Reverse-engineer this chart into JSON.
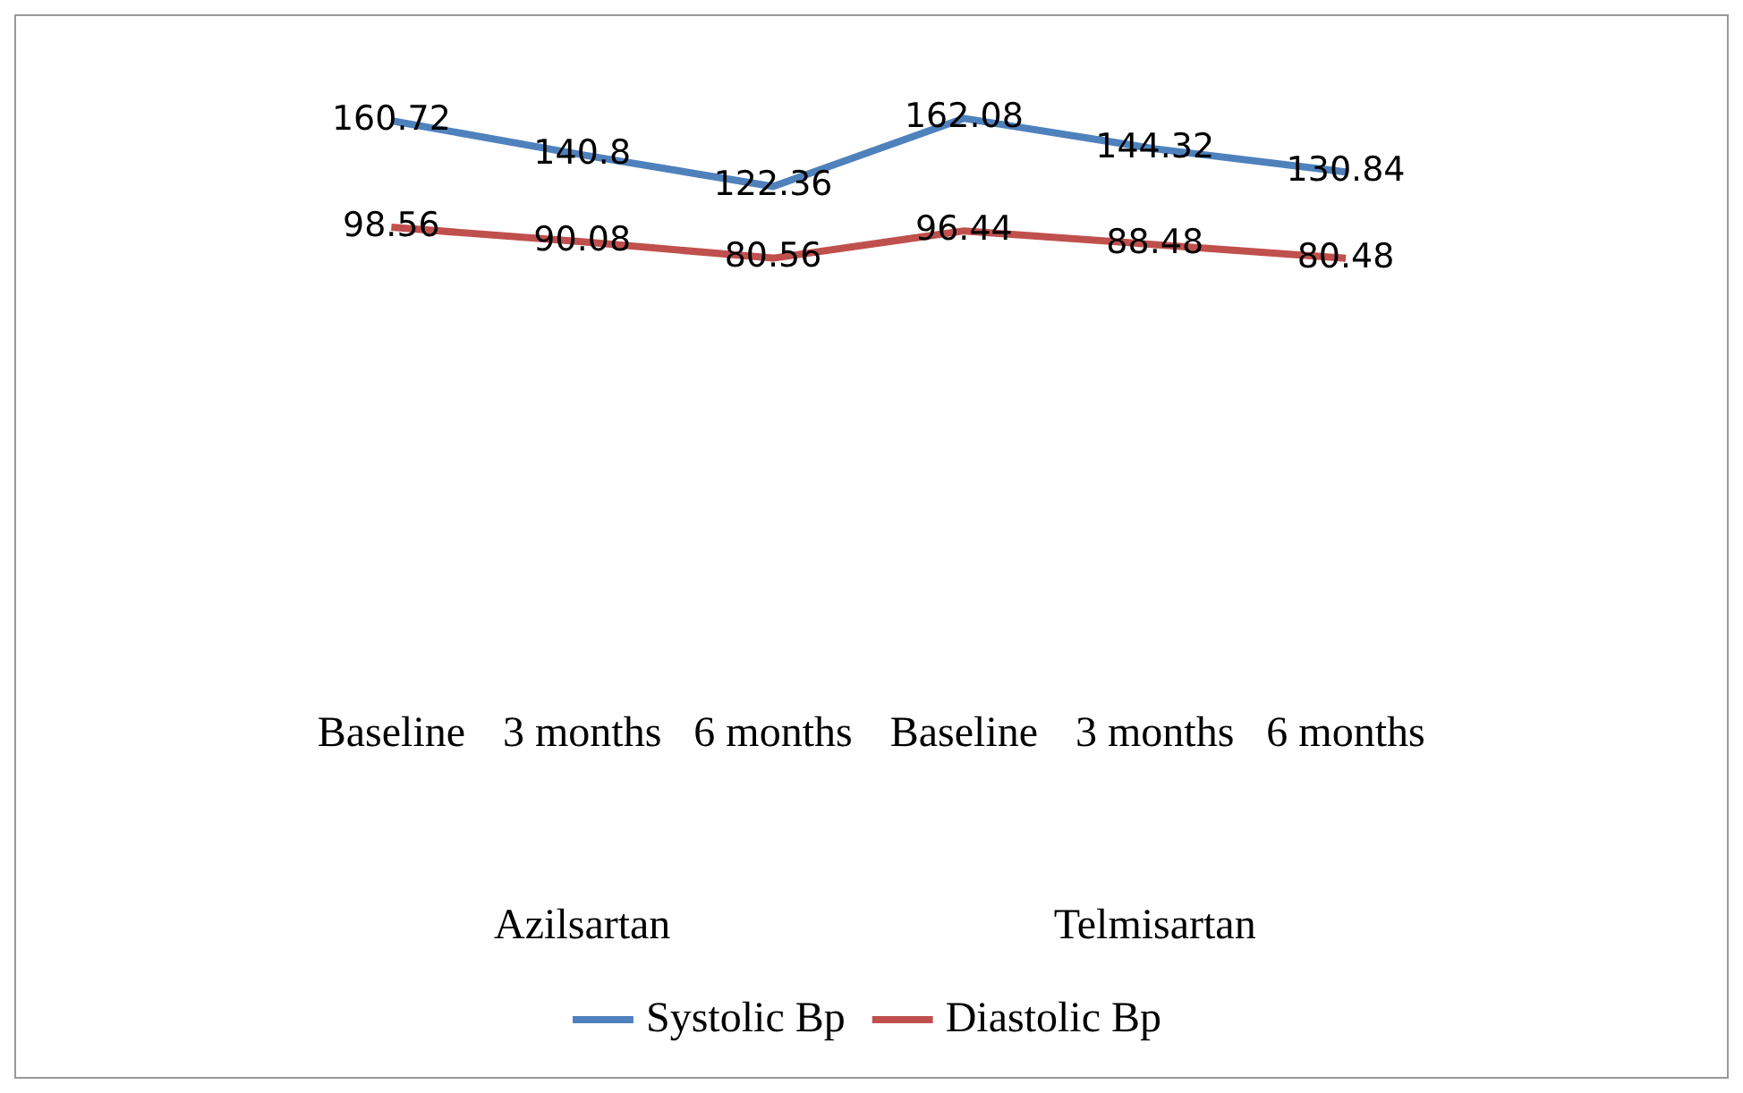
{
  "chart_data": {
    "type": "line",
    "categories": [
      "Baseline",
      "3 months",
      "6 months",
      "Baseline",
      "3 months",
      "6 months"
    ],
    "series": [
      {
        "name": "Systolic Bp",
        "color": "#4f81bd",
        "values": [
          160.72,
          140.8,
          122.36,
          162.08,
          144.32,
          130.84
        ]
      },
      {
        "name": "Diastolic Bp",
        "color": "#c0504d",
        "values": [
          98.56,
          90.08,
          80.56,
          96.44,
          88.48,
          80.48
        ]
      }
    ],
    "annotations": [
      "Azilsartan",
      "Telmisartan"
    ],
    "data_labels": true,
    "grid": false,
    "legend": "bottom",
    "marker": "none",
    "line_style": "solid"
  }
}
